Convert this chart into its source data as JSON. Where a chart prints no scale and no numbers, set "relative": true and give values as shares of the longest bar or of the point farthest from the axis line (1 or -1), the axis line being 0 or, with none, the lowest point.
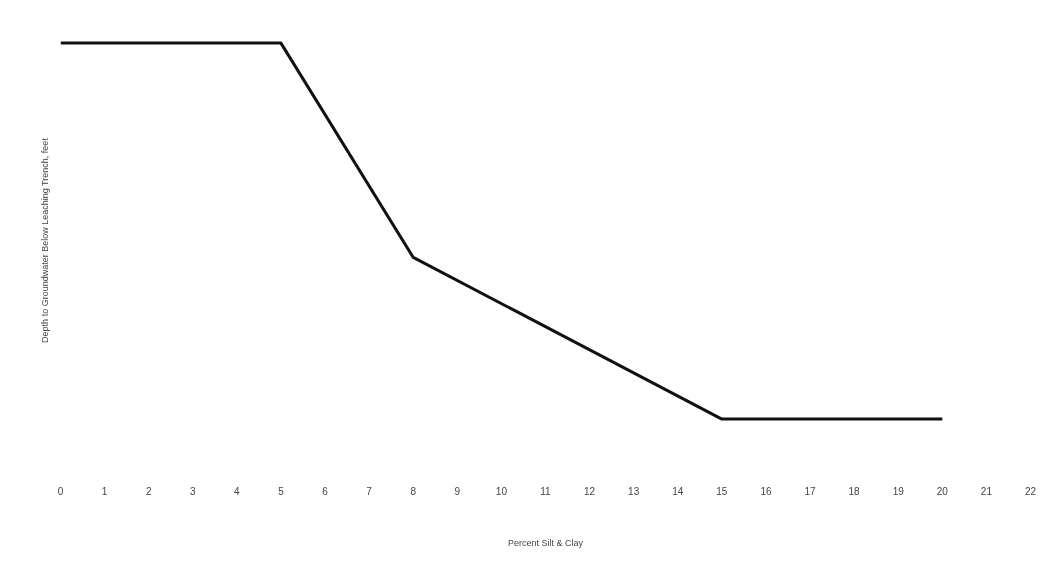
{
  "chart_data": {
    "type": "line",
    "xlabel": "Percent Silt & Clay",
    "ylabel": "Depth to Groundwater Below Leaching Trench, feet",
    "relative": true,
    "series": [
      {
        "color": "#111111",
        "x": [
          0,
          5,
          8,
          15,
          20
        ],
        "values": [
          1,
          1,
          0.43,
          0,
          0
        ]
      }
    ],
    "xlim": [
      0,
      22
    ],
    "xticks": [
      0,
      1,
      2,
      3,
      4,
      5,
      6,
      7,
      8,
      9,
      10,
      11,
      12,
      13,
      14,
      15,
      16,
      17,
      18,
      19,
      20,
      21,
      22
    ],
    "line_style": "solid",
    "marker": "none"
  }
}
